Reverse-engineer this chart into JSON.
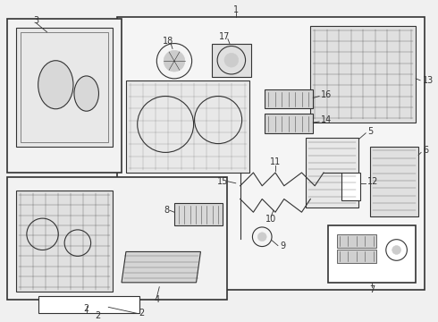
{
  "bg_color": "#f0f0f0",
  "line_color": "#333333",
  "figsize": [
    4.9,
    3.6
  ],
  "dpi": 100
}
